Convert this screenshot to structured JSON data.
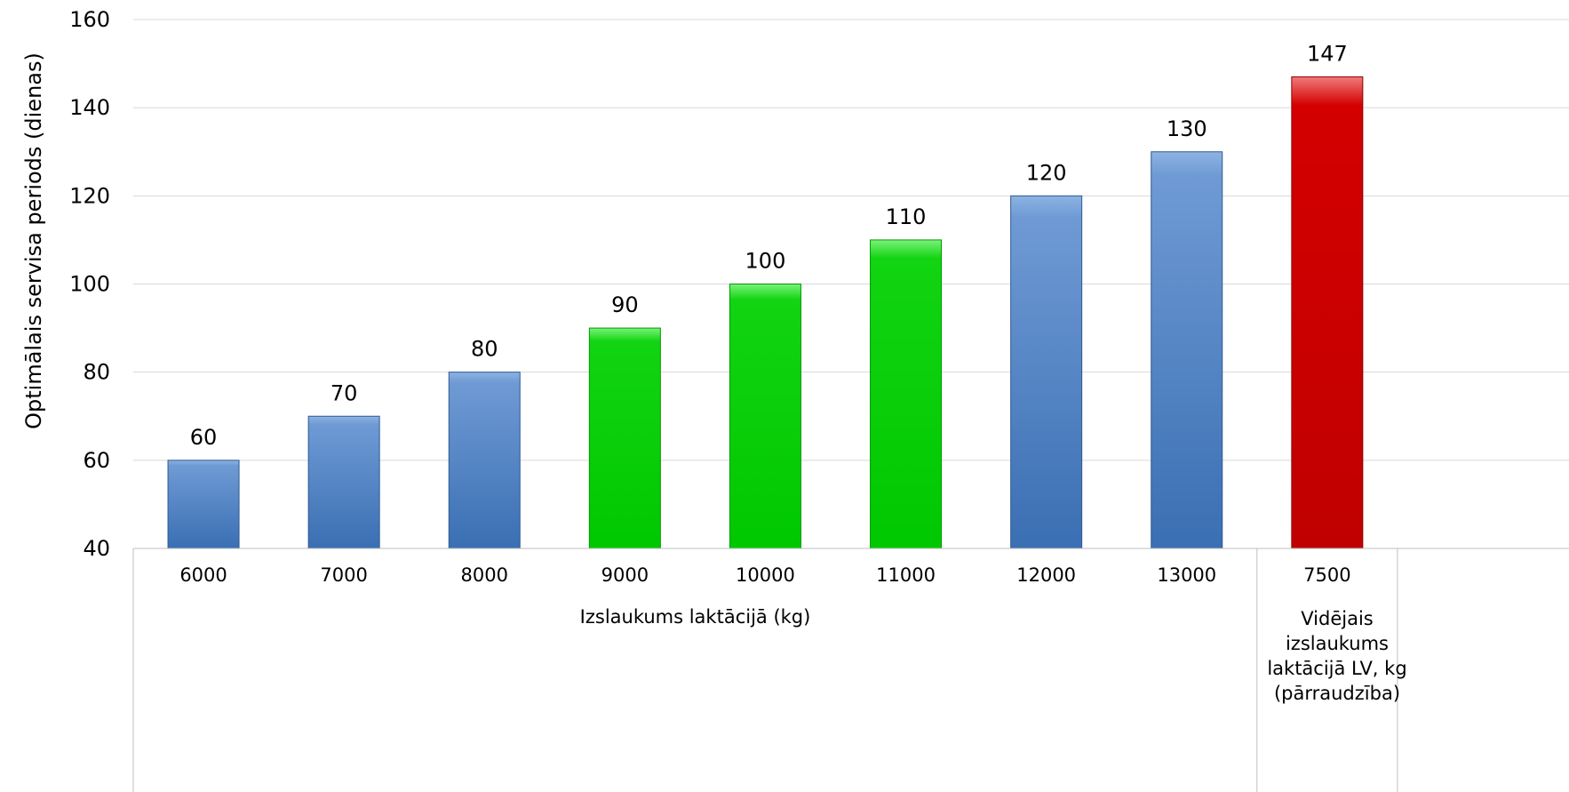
{
  "chart_data": {
    "type": "bar",
    "title": "",
    "ylabel": "Optimālais servisa periods (dienas)",
    "ylim": [
      40,
      160
    ],
    "yticks": [
      40,
      60,
      80,
      100,
      120,
      140,
      160
    ],
    "grid": true,
    "categories": [
      "6000",
      "7000",
      "8000",
      "9000",
      "10000",
      "11000",
      "12000",
      "13000",
      "7500"
    ],
    "values": [
      60,
      70,
      80,
      90,
      100,
      110,
      120,
      130,
      147
    ],
    "colors": [
      "#4f81bd",
      "#4f81bd",
      "#4f81bd",
      "#00cc00",
      "#00cc00",
      "#00cc00",
      "#4f81bd",
      "#4f81bd",
      "#cc0000"
    ],
    "groups": [
      {
        "label": "Izslaukums laktācijā (kg)",
        "count": 8
      },
      {
        "label": "Vidējais izslaukums laktācijā LV, kg (pārraudzība)",
        "count": 1
      }
    ]
  },
  "group_labels": {
    "main": "Izslaukums laktācijā (kg)",
    "second": "Vidējais izslaukums laktācijā LV, kg (pārraudzība)"
  }
}
